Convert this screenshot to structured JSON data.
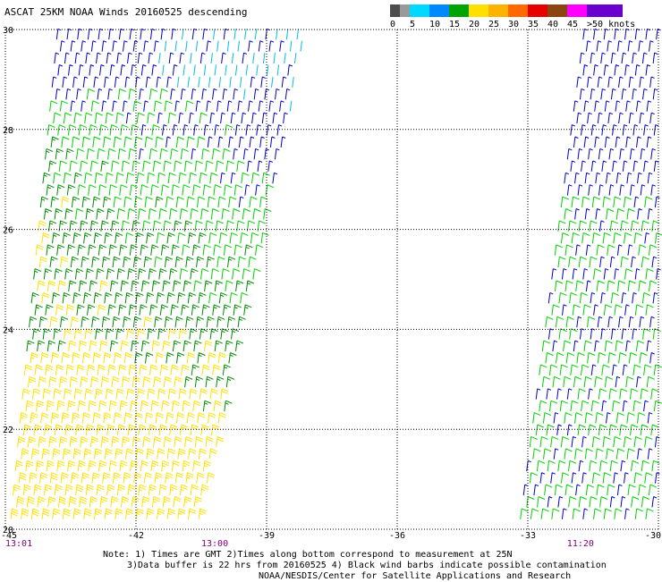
{
  "title": "ASCAT 25KM NOAA Winds 20160525 descending",
  "legend": {
    "bins": [
      {
        "label": "0",
        "color": "#4d4d4d"
      },
      {
        "label": "5",
        "color": "#00d8ff"
      },
      {
        "label": "10",
        "color": "#0088ff"
      },
      {
        "label": "15",
        "color": "#00a400"
      },
      {
        "label": "20",
        "color": "#ffe000"
      },
      {
        "label": "25",
        "color": "#ffb300"
      },
      {
        "label": "30",
        "color": "#ff6a00"
      },
      {
        "label": "35",
        "color": "#e60000"
      },
      {
        "label": "40",
        "color": "#8b4513"
      },
      {
        "label": "45",
        "color": "#ff00ff"
      },
      {
        "label": ">50 knots",
        "color": "#6a00d0"
      }
    ],
    "gray_color": "#4d4d4d",
    "light_gray_color": "#9a9a9a"
  },
  "map": {
    "lon_min": -45,
    "lon_max": -30,
    "lat_min": 20,
    "lat_max": 30,
    "lon_ticks": [
      "-45",
      "-42",
      "-39",
      "-36",
      "-33",
      "-30"
    ],
    "lat_ticks": [
      "30",
      "28",
      "26",
      "24",
      "22",
      "20"
    ],
    "grid": true,
    "time_labels": [
      {
        "lon": -45,
        "text": "13:01"
      },
      {
        "lon": -40.5,
        "text": "13:00"
      },
      {
        "lon": -32.1,
        "text": "11:20"
      }
    ],
    "time_label_color": "#7a0078",
    "swaths": [
      {
        "name": "left-swath",
        "time": "13:00",
        "corners": [
          [
            -43.9,
            30.0
          ],
          [
            -38.0,
            30.0
          ],
          [
            -40.5,
            20.0
          ],
          [
            -45.0,
            20.0
          ]
        ]
      },
      {
        "name": "right-swath",
        "time": "11:20",
        "corners": [
          [
            -31.8,
            30.0
          ],
          [
            -30.0,
            30.0
          ],
          [
            -30.0,
            20.0
          ],
          [
            -33.3,
            20.0
          ]
        ]
      }
    ],
    "barb_colors": {
      "lt10": "#0000c8",
      "lt5": "#00c0e0",
      "lt15": "#00d000",
      "lt20": "#008a00",
      "ge20": "#ffe000"
    }
  },
  "notes": [
    "Note: 1) Times are GMT 2)Times along bottom correspond to measurement at 25N",
    "3)Data buffer is 22 hrs from 20160525 4) Black wind barbs indicate possible contamination",
    "NOAA/NESDIS/Center for Satellite Applications and Research"
  ]
}
